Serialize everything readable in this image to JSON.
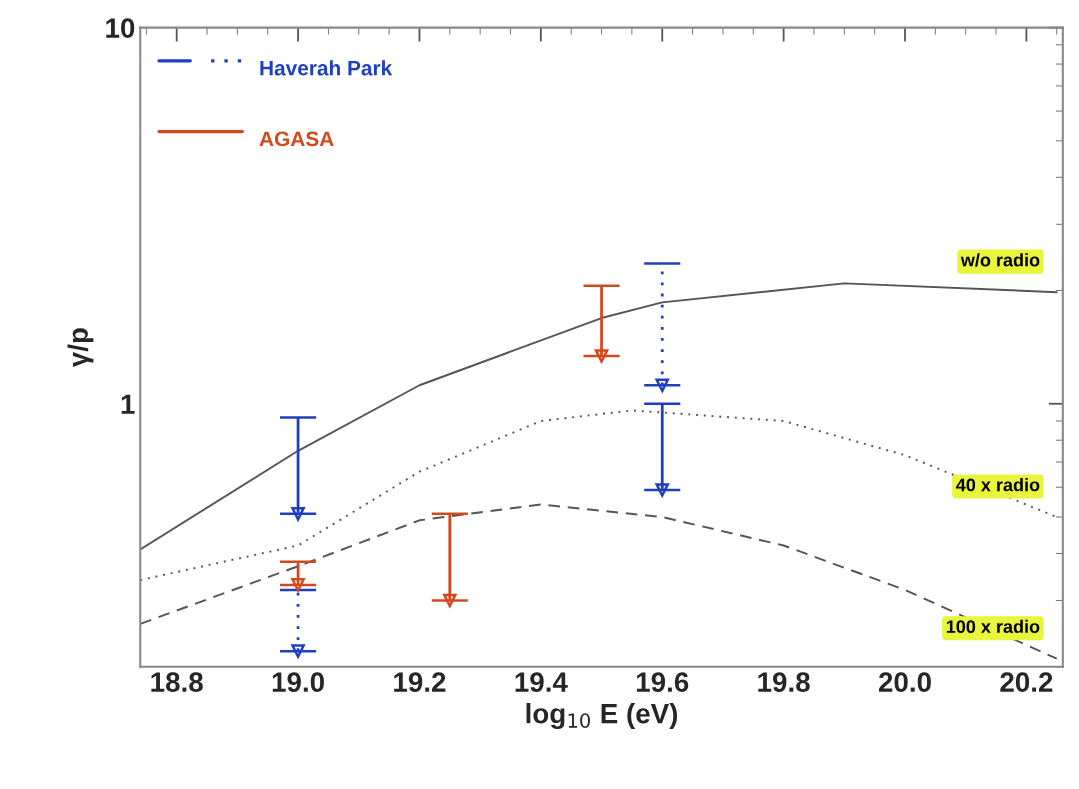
{
  "chart_data": {
    "type": "line",
    "xlabel": "log$_{10}$ E (eV)",
    "ylabel": "γ/p",
    "log": "y",
    "xlim": [
      18.74,
      20.26
    ],
    "xticks": [
      18.8,
      {
        "value": 19.0,
        "label": "19.0"
      },
      19.2,
      19.4,
      19.6,
      19.8,
      {
        "value": 20.0,
        "label": "20.0"
      },
      20.2
    ],
    "ylim": [
      0.2,
      10
    ],
    "yticks": [
      1,
      10
    ],
    "legend": "top left",
    "grid": false,
    "series": [
      {
        "name": "w/o radio",
        "color": "#555555",
        "line_style": "solid",
        "x": [
          18.74,
          19.0,
          19.2,
          19.5,
          19.6,
          19.9,
          20.25
        ],
        "values": [
          0.41,
          0.75,
          1.12,
          1.69,
          1.86,
          2.09,
          1.98
        ]
      },
      {
        "name": "40 x radio",
        "color": "#555555",
        "line_style": "dotted",
        "x": [
          18.74,
          19.0,
          19.2,
          19.4,
          19.55,
          19.8,
          20.0,
          20.25
        ],
        "values": [
          0.34,
          0.42,
          0.66,
          0.9,
          0.96,
          0.9,
          0.73,
          0.5
        ]
      },
      {
        "name": "100 x radio",
        "color": "#555555",
        "line_style": "dashed",
        "x": [
          18.74,
          19.0,
          19.2,
          19.4,
          19.6,
          19.8,
          20.0,
          20.25
        ],
        "values": [
          0.26,
          0.37,
          0.49,
          0.54,
          0.5,
          0.42,
          0.32,
          0.21
        ]
      },
      {
        "name": "Haverah Park",
        "type": "scatter",
        "marker": "triangle",
        "color": "#1f3fbf",
        "line_style": "solid",
        "x": [
          19.0,
          19.6
        ],
        "values": [
          0.51,
          0.59
        ],
        "errors": [
          [
            0.51,
            0.92
          ],
          [
            0.59,
            1.0
          ]
        ]
      },
      {
        "type": "scatter",
        "marker": "triangle",
        "color": "#1f3fbf",
        "line_style": "dotted",
        "x": [
          19.0,
          19.6
        ],
        "values": [
          0.22,
          1.12
        ],
        "errors": [
          [
            0.22,
            0.32
          ],
          [
            1.12,
            2.36
          ]
        ]
      },
      {
        "name": "AGASA",
        "type": "scatter",
        "marker": "triangle",
        "color": "#d4481e",
        "line_style": "solid",
        "x": [
          19.0,
          19.25,
          19.5
        ],
        "values": [
          0.33,
          0.3,
          1.34
        ],
        "errors": [
          [
            0.33,
            0.38
          ],
          [
            0.3,
            0.51
          ],
          [
            1.34,
            2.06
          ]
        ]
      }
    ]
  }
}
